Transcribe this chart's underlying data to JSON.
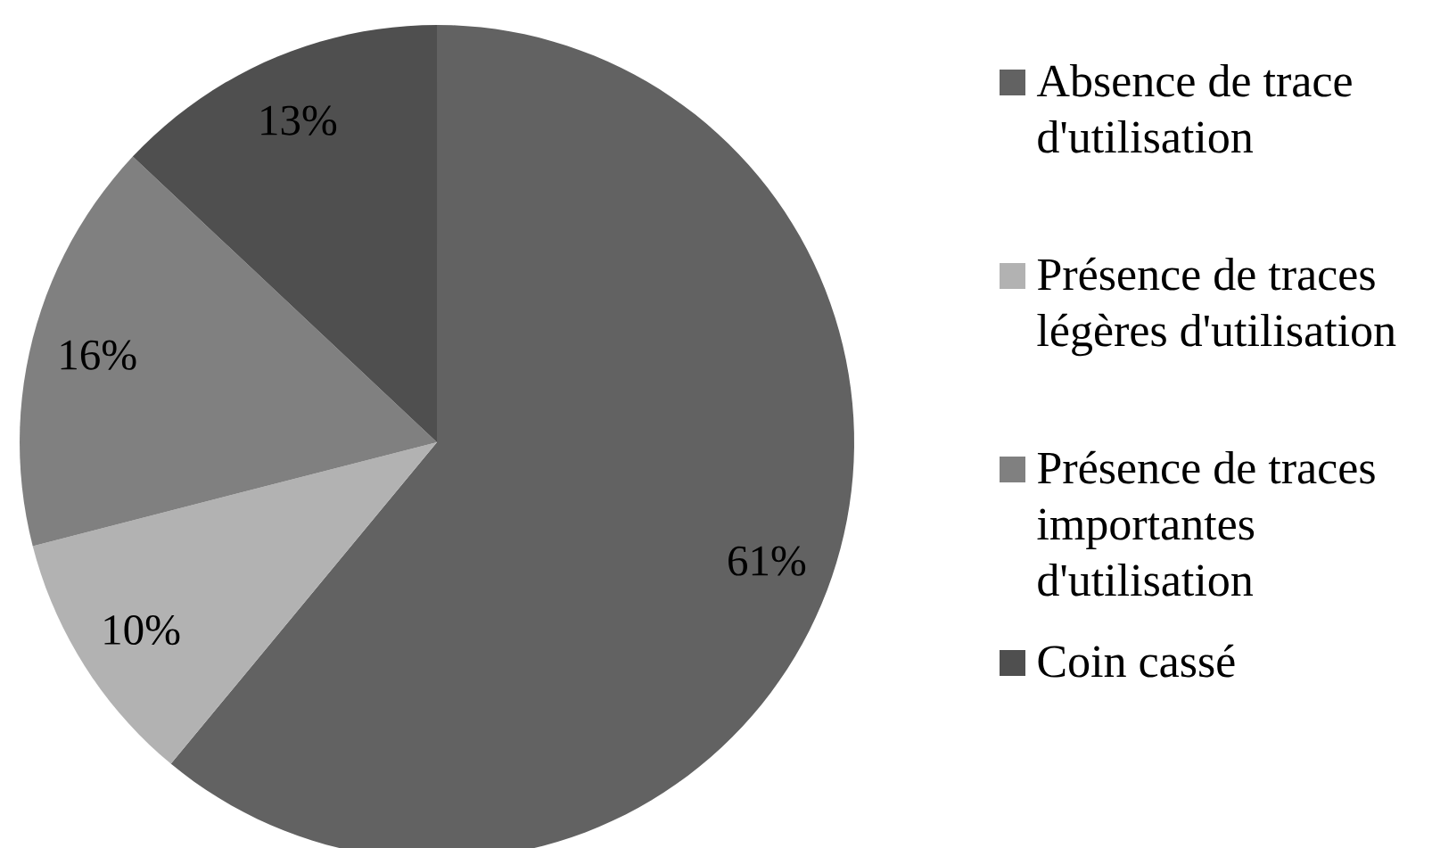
{
  "chart_data": {
    "type": "pie",
    "categories": [
      "Absence de trace d'utilisation",
      "Présence de traces légères d'utilisation",
      "Présence de traces importantes d'utilisation",
      "Coin cassé"
    ],
    "values": [
      61,
      10,
      16,
      13
    ],
    "colors": [
      "#626262",
      "#b2b2b2",
      "#808080",
      "#4f4f4f"
    ],
    "value_labels": [
      "61%",
      "10%",
      "16%",
      "13%"
    ],
    "legend": "right"
  }
}
